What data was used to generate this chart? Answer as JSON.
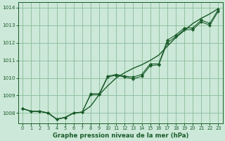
{
  "title": "Graphe pression niveau de la mer (hPa)",
  "bg_color": "#cce8d8",
  "grid_color": "#88bb99",
  "line_color": "#1a5c2a",
  "xlim": [
    -0.5,
    23.5
  ],
  "ylim": [
    1007.4,
    1014.3
  ],
  "yticks": [
    1008,
    1009,
    1010,
    1011,
    1012,
    1013,
    1014
  ],
  "xticks": [
    0,
    1,
    2,
    3,
    4,
    5,
    6,
    7,
    8,
    9,
    10,
    11,
    12,
    13,
    14,
    15,
    16,
    17,
    18,
    19,
    20,
    21,
    22,
    23
  ],
  "series_smooth": [
    1008.25,
    1008.1,
    1008.1,
    1008.0,
    1007.65,
    1007.75,
    1008.0,
    1008.05,
    1008.4,
    1009.05,
    1009.55,
    1010.0,
    1010.3,
    1010.55,
    1010.75,
    1011.0,
    1011.3,
    1011.8,
    1012.3,
    1012.7,
    1013.1,
    1013.4,
    1013.65,
    1013.95
  ],
  "series_marker1": [
    1008.25,
    1008.1,
    1008.1,
    1008.0,
    1007.65,
    1007.75,
    1008.0,
    1008.05,
    1009.1,
    1009.1,
    1010.1,
    1010.2,
    1010.1,
    1010.05,
    1010.2,
    1010.8,
    1010.8,
    1012.15,
    1012.45,
    1012.85,
    1012.85,
    1013.3,
    1013.1,
    1013.9
  ],
  "series_marker2": [
    1008.25,
    1008.1,
    1008.1,
    1008.0,
    1007.65,
    1007.75,
    1008.0,
    1008.05,
    1009.05,
    1009.05,
    1010.05,
    1010.15,
    1010.05,
    1009.95,
    1010.1,
    1010.7,
    1010.75,
    1012.0,
    1012.35,
    1012.75,
    1012.75,
    1013.2,
    1013.0,
    1013.8
  ]
}
